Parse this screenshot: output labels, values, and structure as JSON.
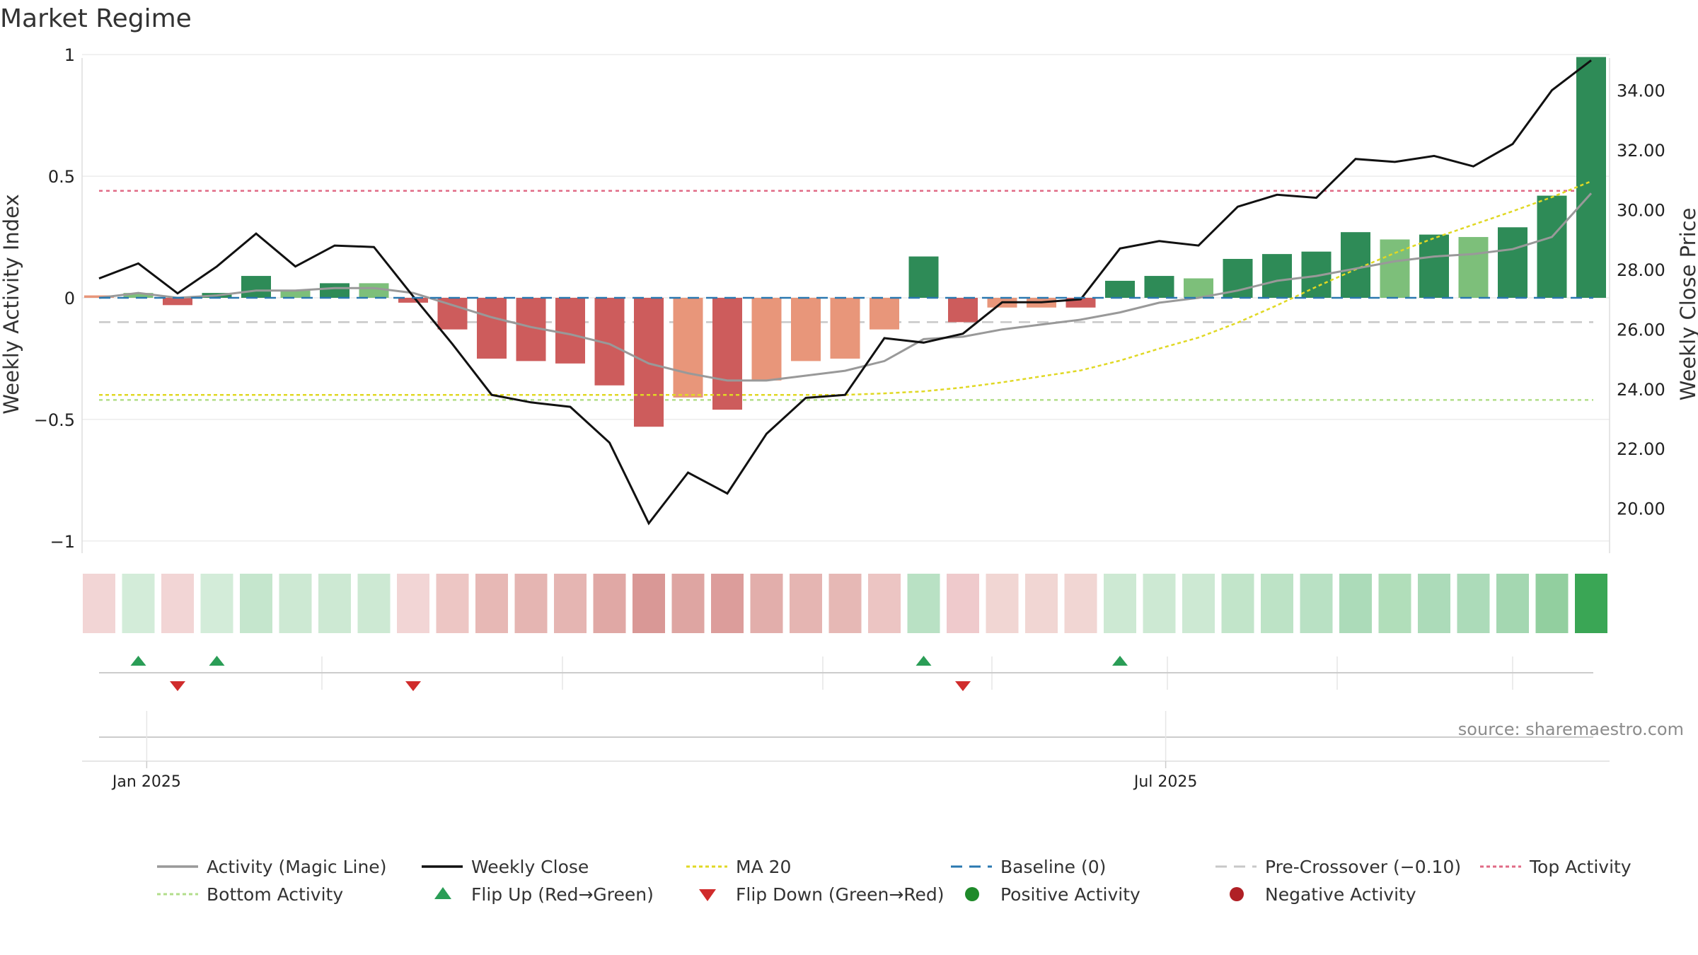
{
  "title": "Market Regime",
  "source": "source: sharemaestro.com",
  "chart_data": {
    "type": "bar",
    "ylabel_left": "Weekly Activity Index",
    "ylabel_right": "Weekly Close Price",
    "ylim_left": [
      -1.05,
      1.05
    ],
    "ylim_right": [
      18.5,
      35.6
    ],
    "left_ticks": [
      1,
      0.5,
      0,
      -0.5,
      -1
    ],
    "left_tick_labels": [
      "1",
      "0.5",
      "0",
      "−0.5",
      "−1"
    ],
    "right_ticks": [
      34,
      32,
      30,
      28,
      26,
      24,
      22,
      20
    ],
    "right_tick_labels": [
      "34.00",
      "32.00",
      "30.00",
      "28.00",
      "26.00",
      "24.00",
      "22.00",
      "20.00"
    ],
    "x_tick_labels": [
      {
        "label": "Jan 2025",
        "week": 1.25
      },
      {
        "label": "Jul 2025",
        "week": 27.2
      }
    ],
    "top_activity": 0.44,
    "bottom_activity": -0.42,
    "baseline": 0,
    "pre_crossover": -0.1,
    "activity": [
      0.01,
      0.02,
      -0.03,
      0.02,
      0.09,
      0.03,
      0.06,
      0.06,
      -0.02,
      -0.13,
      -0.25,
      -0.26,
      -0.27,
      -0.36,
      -0.53,
      -0.41,
      -0.46,
      -0.34,
      -0.26,
      -0.25,
      -0.13,
      0.17,
      -0.1,
      -0.04,
      -0.04,
      -0.04,
      0.07,
      0.09,
      0.08,
      0.16,
      0.18,
      0.19,
      0.27,
      0.24,
      0.26,
      0.25,
      0.29,
      0.42,
      0.99
    ],
    "bar_colors": [
      "#e8967a",
      "#7dbf7a",
      "#cd5c5c",
      "#2e8b57",
      "#2e8b57",
      "#7dbf7a",
      "#2e8b57",
      "#7dbf7a",
      "#cd5c5c",
      "#cd5c5c",
      "#cd5c5c",
      "#cd5c5c",
      "#cd5c5c",
      "#cd5c5c",
      "#cd5c5c",
      "#e8967a",
      "#cd5c5c",
      "#e8967a",
      "#e8967a",
      "#e8967a",
      "#e8967a",
      "#2e8b57",
      "#cd5c5c",
      "#e8967a",
      "#e8967a",
      "#cd5c5c",
      "#2e8b57",
      "#2e8b57",
      "#7dbf7a",
      "#2e8b57",
      "#2e8b57",
      "#2e8b57",
      "#2e8b57",
      "#7dbf7a",
      "#2e8b57",
      "#7dbf7a",
      "#2e8b57",
      "#2e8b57",
      "#2e8b57"
    ],
    "magic_line": [
      0.0,
      0.02,
      0.0,
      0.01,
      0.03,
      0.03,
      0.04,
      0.04,
      0.02,
      -0.03,
      -0.08,
      -0.12,
      -0.15,
      -0.19,
      -0.27,
      -0.31,
      -0.34,
      -0.34,
      -0.32,
      -0.3,
      -0.26,
      -0.17,
      -0.16,
      -0.13,
      -0.11,
      -0.09,
      -0.06,
      -0.02,
      0.0,
      0.03,
      0.07,
      0.09,
      0.12,
      0.15,
      0.17,
      0.18,
      0.2,
      0.25,
      0.43
    ],
    "weekly_close": [
      27.7,
      28.2,
      27.2,
      28.1,
      29.2,
      28.1,
      28.8,
      28.75,
      27.1,
      25.5,
      23.8,
      23.55,
      23.4,
      22.2,
      19.5,
      21.2,
      20.5,
      22.5,
      23.7,
      23.8,
      25.7,
      25.55,
      25.85,
      26.9,
      26.9,
      27.0,
      28.7,
      28.95,
      28.8,
      30.1,
      30.5,
      30.4,
      31.7,
      31.6,
      31.8,
      31.45,
      32.2,
      34.0,
      35.0
    ],
    "ma20": [
      null,
      null,
      null,
      null,
      null,
      null,
      null,
      null,
      null,
      null,
      null,
      null,
      null,
      null,
      null,
      null,
      null,
      null,
      null,
      23.8,
      23.85,
      23.92,
      24.05,
      24.22,
      24.42,
      24.62,
      24.95,
      25.35,
      25.72,
      26.22,
      26.8,
      27.42,
      28.0,
      28.55,
      29.05,
      29.5,
      29.95,
      30.42,
      30.95
    ],
    "heat_colors": [
      "#f2d5d5",
      "#d3ecd9",
      "#f2d5d5",
      "#d3ecd9",
      "#c5e6cd",
      "#cde9d3",
      "#cde9d3",
      "#cde9d3",
      "#f2d5d5",
      "#edc6c4",
      "#e7b8b5",
      "#e5b5b2",
      "#e5b5b2",
      "#e0a8a5",
      "#d99896",
      "#dea5a2",
      "#dc9d9b",
      "#e2aeab",
      "#e5b5b2",
      "#e6b8b5",
      "#ecc5c3",
      "#b9e1c4",
      "#efcacc",
      "#f1d6d3",
      "#f1d6d3",
      "#f1d6d3",
      "#cde9d3",
      "#cde9d3",
      "#cde9d3",
      "#c2e5ca",
      "#bde3c6",
      "#b9e1c4",
      "#acdbb9",
      "#b1deba",
      "#acdbb9",
      "#acdbb9",
      "#a4d7b1",
      "#92cf9f",
      "#3aa655"
    ],
    "flip_up_weeks": [
      1,
      3,
      21,
      26
    ],
    "flip_down_weeks": [
      2,
      8,
      22
    ],
    "series_colors": {
      "activity": "#999999",
      "weekly_close": "#111111",
      "ma20": "#e0d824",
      "baseline": "#2a78b0",
      "pre_crossover": "#c8c8c8",
      "top_activity": "#e06a86",
      "bottom_activity": "#b2de8a",
      "flip_up": "#2a9d56",
      "flip_down": "#d02c2c",
      "positive": "#1e8a2a",
      "negative": "#b02025"
    },
    "legend": {
      "placement": "bottom",
      "items": [
        {
          "key": "activity",
          "label": "Activity (Magic Line)"
        },
        {
          "key": "weekly_close",
          "label": "Weekly Close"
        },
        {
          "key": "ma20",
          "label": "MA 20"
        },
        {
          "key": "baseline",
          "label": "Baseline (0)"
        },
        {
          "key": "pre_crossover",
          "label": "Pre-Crossover (−0.10)"
        },
        {
          "key": "top_activity",
          "label": "Top Activity"
        },
        {
          "key": "bottom_activity",
          "label": "Bottom Activity"
        },
        {
          "key": "flip_up",
          "label": "Flip Up (Red→Green)"
        },
        {
          "key": "flip_down",
          "label": "Flip Down (Green→Red)"
        },
        {
          "key": "positive",
          "label": "Positive Activity"
        },
        {
          "key": "negative",
          "label": "Negative Activity"
        }
      ]
    }
  }
}
